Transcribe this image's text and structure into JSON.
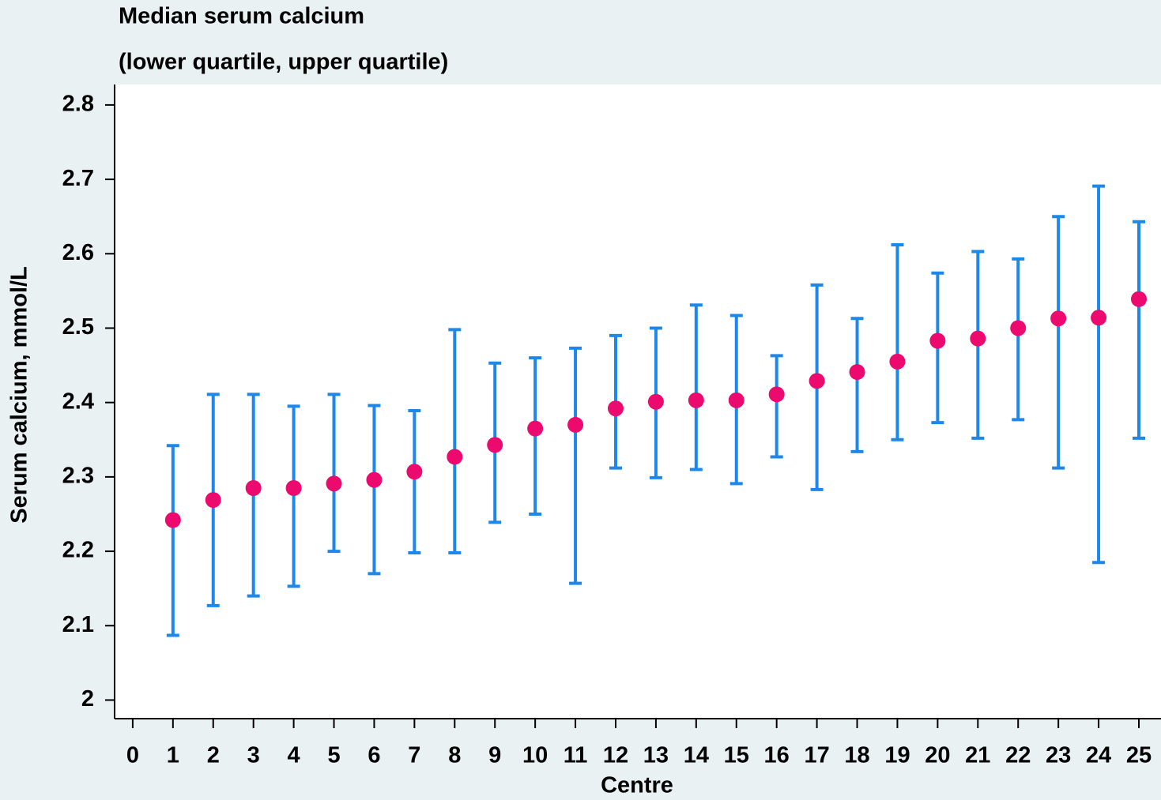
{
  "chart_data": {
    "type": "errorbar",
    "title": "Median serum calcium",
    "subtitle": "(lower quartile, upper quartile)",
    "y_label": "Serum calcium, mmol/L",
    "x_label": "Centre",
    "x": [
      1,
      2,
      3,
      4,
      5,
      6,
      7,
      8,
      9,
      10,
      11,
      12,
      13,
      14,
      15,
      16,
      17,
      18,
      19,
      20,
      21,
      22,
      23,
      24,
      25
    ],
    "values": [
      2.242,
      2.269,
      2.285,
      2.285,
      2.291,
      2.296,
      2.307,
      2.327,
      2.343,
      2.365,
      2.37,
      2.392,
      2.401,
      2.403,
      2.403,
      2.411,
      2.429,
      2.441,
      2.455,
      2.483,
      2.486,
      2.5,
      2.513,
      2.514,
      2.539
    ],
    "lower": [
      2.087,
      2.127,
      2.14,
      2.153,
      2.2,
      2.17,
      2.198,
      2.198,
      2.239,
      2.25,
      2.157,
      2.312,
      2.299,
      2.31,
      2.291,
      2.327,
      2.283,
      2.334,
      2.35,
      2.373,
      2.352,
      2.377,
      2.312,
      2.185,
      2.352
    ],
    "upper": [
      2.342,
      2.411,
      2.411,
      2.395,
      2.411,
      2.396,
      2.389,
      2.498,
      2.453,
      2.46,
      2.473,
      2.49,
      2.5,
      2.531,
      2.517,
      2.463,
      2.558,
      2.513,
      2.612,
      2.574,
      2.603,
      2.593,
      2.65,
      2.691,
      2.643
    ],
    "marker_color": "#ec0a6f",
    "error_color": "#1e88ea",
    "xlim": [
      -0.45,
      25.55
    ],
    "ylim": [
      1.975,
      2.8275
    ],
    "xticks": [
      0,
      1,
      2,
      3,
      4,
      5,
      6,
      7,
      8,
      9,
      10,
      11,
      12,
      13,
      14,
      15,
      16,
      17,
      18,
      19,
      20,
      21,
      22,
      23,
      24,
      25
    ],
    "yticks": [
      2,
      2.1,
      2.2,
      2.3,
      2.4,
      2.5,
      2.6,
      2.7,
      2.8
    ],
    "grid": false
  }
}
